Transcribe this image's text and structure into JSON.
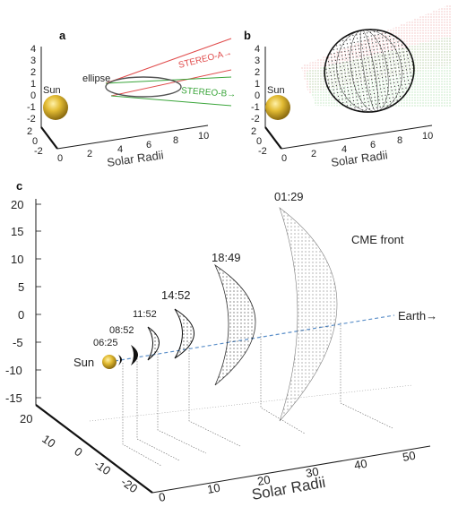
{
  "panel_a": {
    "label": "a",
    "sun_label": "Sun",
    "ellipse_label": "ellipse",
    "stereo_a_label": "STEREO-A→",
    "stereo_b_label": "STEREO-B→",
    "x_label": "Solar Radii",
    "z_ticks": [
      "4",
      "3",
      "2",
      "1",
      "0",
      "-1",
      "-2"
    ],
    "y_ticks": [
      "2",
      "0",
      "-2"
    ],
    "x_ticks": [
      "0",
      "2",
      "4",
      "6",
      "8",
      "10"
    ]
  },
  "panel_b": {
    "label": "b",
    "sun_label": "Sun",
    "x_label": "Solar Radii",
    "z_ticks": [
      "4",
      "3",
      "2",
      "1",
      "0",
      "-1",
      "-2"
    ],
    "y_ticks": [
      "2",
      "0",
      "-2"
    ],
    "x_ticks": [
      "0",
      "2",
      "4",
      "6",
      "8",
      "10"
    ]
  },
  "panel_c": {
    "label": "c",
    "sun_label": "Sun",
    "earth_label": "Earth→",
    "cme_label": "CME front",
    "x_label": "Solar Radii",
    "z_ticks": [
      "20",
      "15",
      "10",
      "5",
      "0",
      "-5",
      "-10",
      "-15"
    ],
    "y_ticks": [
      "20",
      "10",
      "0",
      "-10",
      "-20"
    ],
    "x_ticks": [
      "0",
      "10",
      "20",
      "30",
      "40",
      "50"
    ],
    "times": [
      "06:25",
      "08:52",
      "11:52",
      "14:52",
      "18:49",
      "01:29"
    ]
  },
  "colors": {
    "sun": "#c9a227",
    "stereo_a": "#e04a4a",
    "stereo_b": "#3aa53a",
    "earth_line": "#5b8fc9",
    "mesh": "#1a1a1a"
  }
}
